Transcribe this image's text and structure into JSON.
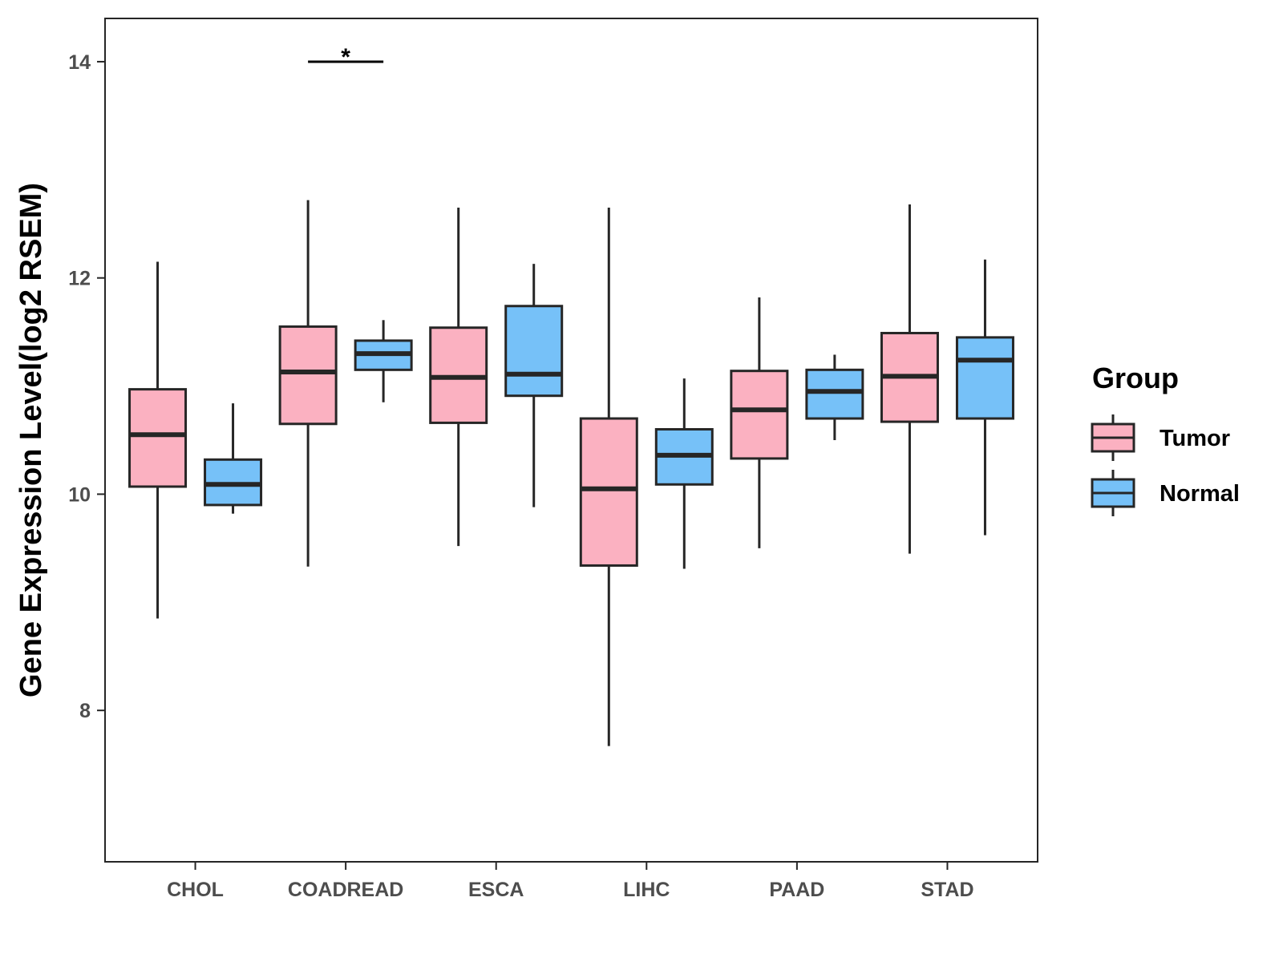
{
  "chart_data": {
    "type": "boxplot",
    "title": "",
    "xlabel": "",
    "ylabel": "Gene Expression Level(log2 RSEM)",
    "ylim": [
      6.6,
      14.4
    ],
    "yticks": [
      8,
      10,
      12,
      14
    ],
    "grid": false,
    "categories": [
      "CHOL",
      "COADREAD",
      "ESCA",
      "LIHC",
      "PAAD",
      "STAD"
    ],
    "legend": {
      "title": "Group",
      "position": "right",
      "entries": [
        "Tumor",
        "Normal"
      ]
    },
    "colors": {
      "Tumor": "#FBB1C1",
      "Normal": "#76C1F8",
      "outline": "#262626"
    },
    "series": [
      {
        "name": "Tumor",
        "boxes": [
          {
            "category": "CHOL",
            "whisker_low": 8.85,
            "q1": 10.07,
            "median": 10.55,
            "q3": 10.97,
            "whisker_high": 12.15
          },
          {
            "category": "COADREAD",
            "whisker_low": 9.33,
            "q1": 10.65,
            "median": 11.13,
            "q3": 11.55,
            "whisker_high": 12.72
          },
          {
            "category": "ESCA",
            "whisker_low": 9.52,
            "q1": 10.66,
            "median": 11.08,
            "q3": 11.54,
            "whisker_high": 12.65
          },
          {
            "category": "LIHC",
            "whisker_low": 7.67,
            "q1": 9.34,
            "median": 10.05,
            "q3": 10.7,
            "whisker_high": 12.65
          },
          {
            "category": "PAAD",
            "whisker_low": 9.5,
            "q1": 10.33,
            "median": 10.78,
            "q3": 11.14,
            "whisker_high": 11.82
          },
          {
            "category": "STAD",
            "whisker_low": 9.45,
            "q1": 10.67,
            "median": 11.09,
            "q3": 11.49,
            "whisker_high": 12.68
          }
        ]
      },
      {
        "name": "Normal",
        "boxes": [
          {
            "category": "CHOL",
            "whisker_low": 9.82,
            "q1": 9.9,
            "median": 10.09,
            "q3": 10.32,
            "whisker_high": 10.84
          },
          {
            "category": "COADREAD",
            "whisker_low": 10.85,
            "q1": 11.15,
            "median": 11.3,
            "q3": 11.42,
            "whisker_high": 11.61
          },
          {
            "category": "ESCA",
            "whisker_low": 9.88,
            "q1": 10.91,
            "median": 11.11,
            "q3": 11.74,
            "whisker_high": 12.13
          },
          {
            "category": "LIHC",
            "whisker_low": 9.31,
            "q1": 10.09,
            "median": 10.36,
            "q3": 10.6,
            "whisker_high": 11.07
          },
          {
            "category": "PAAD",
            "whisker_low": 10.5,
            "q1": 10.7,
            "median": 10.95,
            "q3": 11.15,
            "whisker_high": 11.29
          },
          {
            "category": "STAD",
            "whisker_low": 9.62,
            "q1": 10.7,
            "median": 11.24,
            "q3": 11.45,
            "whisker_high": 12.17
          }
        ]
      }
    ],
    "annotations": [
      {
        "category": "COADREAD",
        "y": 14.0,
        "label": "*"
      }
    ]
  }
}
